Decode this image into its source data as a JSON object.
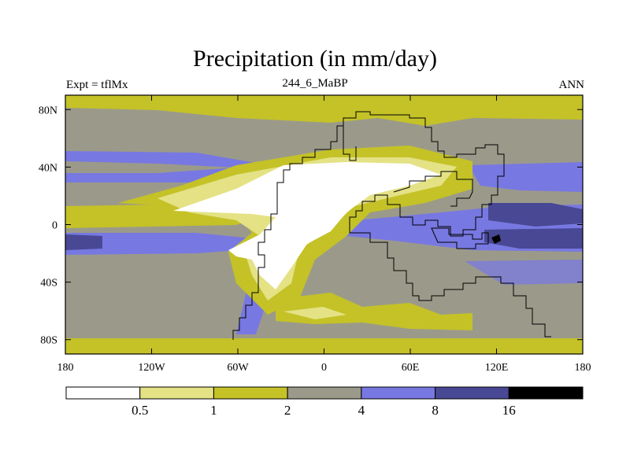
{
  "chart_data": {
    "type": "heatmap",
    "title": "Precipitation (in mm/day)",
    "subtitle": "244_6_MaBP",
    "left_label": "Expt = tflMx",
    "right_label": "ANN",
    "x_ticks": [
      {
        "value": -180,
        "label": "180"
      },
      {
        "value": -120,
        "label": "120W"
      },
      {
        "value": -60,
        "label": "60W"
      },
      {
        "value": 0,
        "label": "0"
      },
      {
        "value": 60,
        "label": "60E"
      },
      {
        "value": 120,
        "label": "120E"
      },
      {
        "value": 180,
        "label": "180"
      }
    ],
    "y_ticks": [
      {
        "value": 80,
        "label": "80N"
      },
      {
        "value": 40,
        "label": "40N"
      },
      {
        "value": 0,
        "label": "0"
      },
      {
        "value": -40,
        "label": "40S"
      },
      {
        "value": -80,
        "label": "80S"
      }
    ],
    "xlim": [
      -180,
      180
    ],
    "ylim": [
      -90,
      90
    ],
    "colorbar": {
      "levels": [
        "0.5",
        "1",
        "2",
        "4",
        "8",
        "16"
      ],
      "colors": [
        "#ffffff",
        "#e4e285",
        "#c4c227",
        "#9b9a8a",
        "#7878e2",
        "#484894",
        "#000000"
      ]
    }
  }
}
